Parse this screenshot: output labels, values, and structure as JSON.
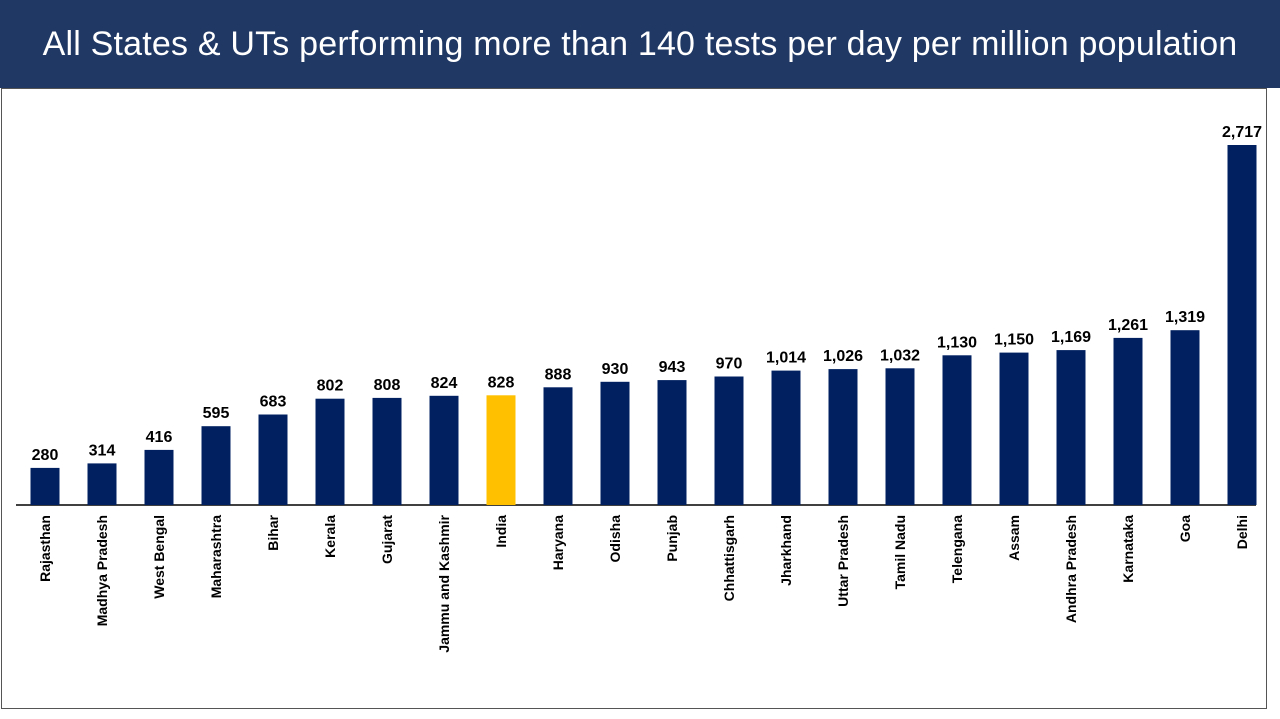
{
  "title": "All States & UTs performing more than 140 tests per day per million population",
  "colors": {
    "header_bg": "#1f3864",
    "bar": "#002060",
    "highlight": "#ffc000"
  },
  "chart_data": {
    "type": "bar",
    "title": "All States & UTs performing more than 140 tests per day per million population",
    "xlabel": "",
    "ylabel": "",
    "ylim": [
      0,
      2717
    ],
    "grid": false,
    "highlight_category": "India",
    "categories": [
      "Rajasthan",
      "Madhya Pradesh",
      "West Bengal",
      "Maharashtra",
      "Bihar",
      "Kerala",
      "Gujarat",
      "Jammu and Kashmir",
      "India",
      "Haryana",
      "Odisha",
      "Punjab",
      "Chhattisgarh",
      "Jharkhand",
      "Uttar Pradesh",
      "Tamil Nadu",
      "Telengana",
      "Assam",
      "Andhra Pradesh",
      "Karnataka",
      "Goa",
      "Delhi"
    ],
    "values": [
      280,
      314,
      416,
      595,
      683,
      802,
      808,
      824,
      828,
      888,
      930,
      943,
      970,
      1014,
      1026,
      1032,
      1130,
      1150,
      1169,
      1261,
      1319,
      2717
    ],
    "value_labels": [
      "280",
      "314",
      "416",
      "595",
      "683",
      "802",
      "808",
      "824",
      "828",
      "888",
      "930",
      "943",
      "970",
      "1,014",
      "1,026",
      "1,032",
      "1,130",
      "1,150",
      "1,169",
      "1,261",
      "1,319",
      "2,717"
    ]
  }
}
